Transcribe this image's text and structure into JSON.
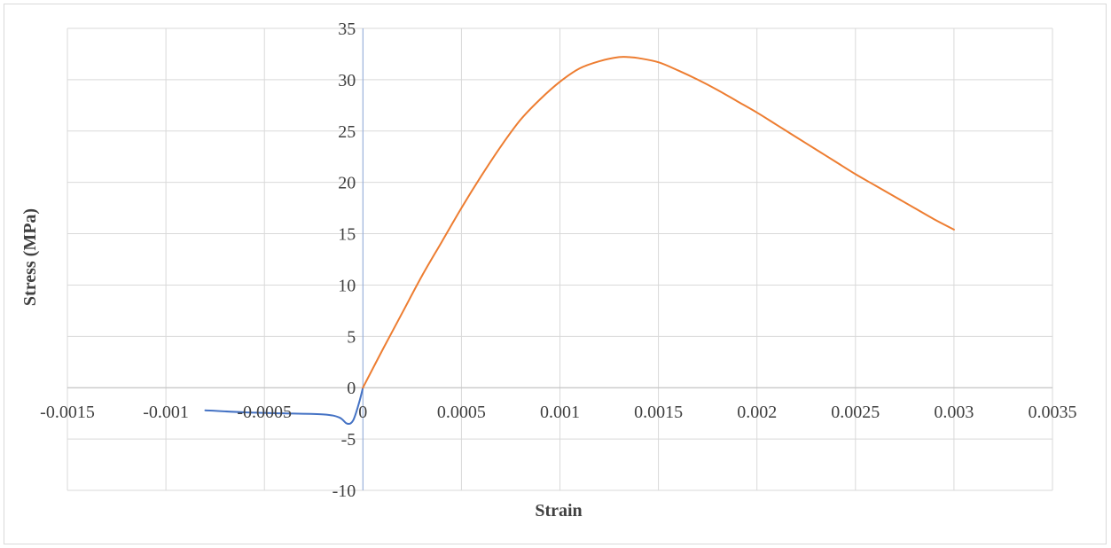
{
  "chart_data": {
    "type": "line",
    "title": "",
    "xlabel": "Strain",
    "ylabel": "Stress (MPa)",
    "xlim": [
      -0.0015,
      0.0035
    ],
    "ylim": [
      -10,
      35
    ],
    "x_ticks": [
      "-0.0015",
      "-0.001",
      "-0.0005",
      "0",
      "0.0005",
      "0.001",
      "0.0015",
      "0.002",
      "0.0025",
      "0.003",
      "0.0035"
    ],
    "y_ticks": [
      "-10",
      "-5",
      "0",
      "5",
      "10",
      "15",
      "20",
      "25",
      "30",
      "35"
    ],
    "grid": true,
    "legend": "none",
    "series": [
      {
        "color": "#4472C4",
        "x": [
          -0.0008,
          -0.0006,
          -0.0004,
          -0.0002,
          -0.00012,
          -8e-05,
          -5e-05,
          -2e-05,
          0
        ],
        "y": [
          -2.2,
          -2.4,
          -2.5,
          -2.6,
          -2.9,
          -3.5,
          -3.2,
          -1.5,
          0
        ]
      },
      {
        "color": "#ED7D31",
        "x": [
          0,
          0.0001,
          0.0002,
          0.0003,
          0.0004,
          0.0005,
          0.0006,
          0.0007,
          0.0008,
          0.0009,
          0.001,
          0.0011,
          0.0012,
          0.0013,
          0.00135,
          0.0014,
          0.0015,
          0.0016,
          0.0017,
          0.0018,
          0.0019,
          0.002,
          0.0021,
          0.0022,
          0.0023,
          0.0024,
          0.0025,
          0.0026,
          0.0027,
          0.0028,
          0.0029,
          0.003
        ],
        "y": [
          0,
          3.7,
          7.3,
          10.9,
          14.2,
          17.5,
          20.6,
          23.5,
          26.1,
          28.1,
          29.8,
          31.1,
          31.8,
          32.2,
          32.2,
          32.1,
          31.7,
          30.9,
          30.0,
          29.0,
          27.9,
          26.8,
          25.6,
          24.4,
          23.2,
          22.0,
          20.8,
          19.7,
          18.6,
          17.5,
          16.4,
          15.4
        ]
      }
    ]
  }
}
